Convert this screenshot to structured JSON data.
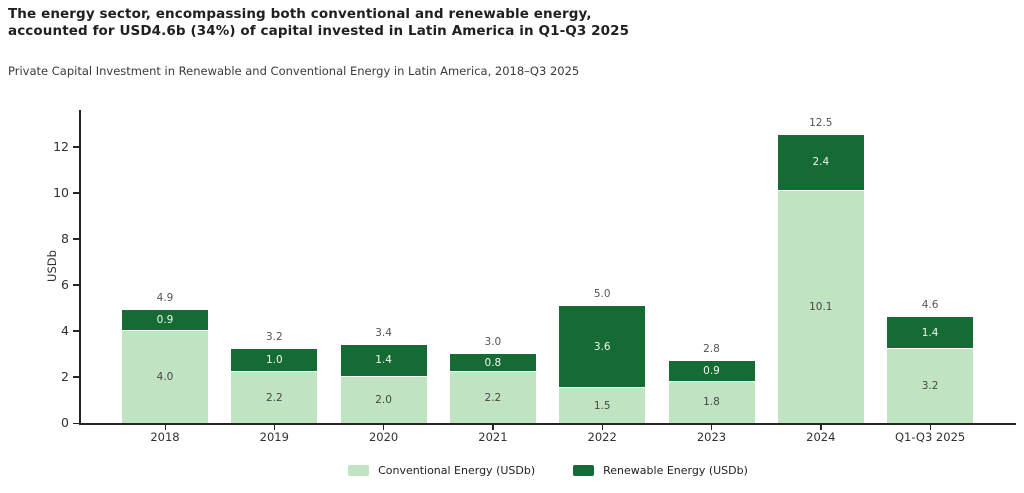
{
  "header": {
    "title": "The energy sector, encompassing both conventional and renewable energy,\naccounted for USD4.6b (34%) of capital invested in Latin America in Q1-Q3 2025",
    "subtitle": "Private Capital Investment in Renewable and Conventional Energy in Latin America, 2018–Q3 2025"
  },
  "chart_data": {
    "type": "bar",
    "stacked": true,
    "title": "Private Capital Investment in Renewable and Conventional Energy in Latin America, 2018–Q3 2025",
    "categories": [
      "2018",
      "2019",
      "2020",
      "2021",
      "2022",
      "2023",
      "2024",
      "Q1-Q3 2025"
    ],
    "series": [
      {
        "name": "Conventional Energy (USDb)",
        "color": "#c0e3c2",
        "values": [
          4.0,
          2.2,
          2.0,
          2.2,
          1.5,
          1.8,
          10.1,
          3.2
        ]
      },
      {
        "name": "Renewable Energy (USDb)",
        "color": "#146b33",
        "values": [
          0.9,
          1.0,
          1.4,
          0.8,
          3.6,
          0.9,
          2.4,
          1.4
        ]
      }
    ],
    "totals": [
      4.9,
      3.2,
      3.4,
      3.0,
      5.0,
      2.8,
      12.5,
      4.6
    ],
    "xlabel": "",
    "ylabel": "USDb",
    "yticks": [
      0,
      2,
      4,
      6,
      8,
      10,
      12
    ],
    "ylim": [
      0,
      13.6
    ],
    "grid": false,
    "legend_position": "bottom-center",
    "value_label_decimals": 1
  },
  "colors": {
    "conventional": "#c0e3c2",
    "renewable": "#146b33",
    "axis": "#262626",
    "total_label": "#555555",
    "background": "#ffffff"
  }
}
